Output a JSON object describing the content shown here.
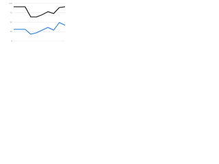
{
  "chart_data": {
    "type": "line",
    "x": [
      1,
      2,
      3,
      4,
      5,
      6,
      7,
      8,
      9,
      10
    ],
    "xlim": [
      1,
      10
    ],
    "ylim": [
      0,
      100
    ],
    "yticks": [
      0,
      25,
      50,
      75,
      100
    ],
    "grid": true,
    "series": [
      {
        "color": "#1a1a1a",
        "values": [
          91,
          91,
          91,
          64,
          64,
          70,
          78,
          73,
          89,
          91
        ]
      },
      {
        "color": "#2e86de",
        "values": [
          31,
          31,
          31,
          18,
          22,
          29,
          36,
          29,
          49,
          42
        ]
      }
    ]
  }
}
